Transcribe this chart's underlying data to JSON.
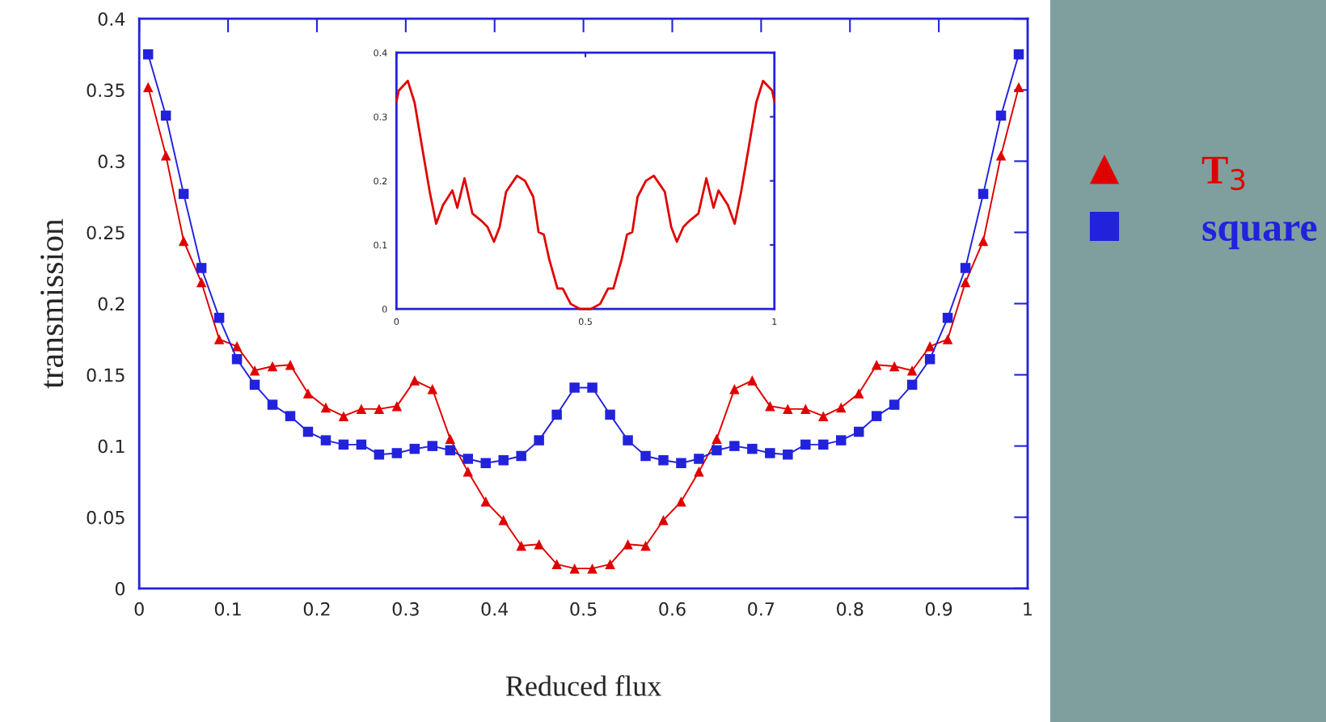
{
  "chart_data": [
    {
      "type": "line",
      "xlabel": "Reduced flux",
      "ylabel": "transmission",
      "x": [
        0.01,
        0.03,
        0.05,
        0.07,
        0.09,
        0.11,
        0.13,
        0.15,
        0.17,
        0.19,
        0.21,
        0.23,
        0.25,
        0.27,
        0.29,
        0.31,
        0.33,
        0.35,
        0.37,
        0.39,
        0.41,
        0.43,
        0.45,
        0.47,
        0.49,
        0.51,
        0.53,
        0.55,
        0.57,
        0.59,
        0.61,
        0.63,
        0.65,
        0.67,
        0.69,
        0.71,
        0.73,
        0.75,
        0.77,
        0.79,
        0.81,
        0.83,
        0.85,
        0.87,
        0.89,
        0.91,
        0.93,
        0.95,
        0.97,
        0.99
      ],
      "series": [
        {
          "name": "T$_{3}$",
          "color": "#e00000",
          "marker": "triangle",
          "values": [
            0.352,
            0.304,
            0.244,
            0.215,
            0.175,
            0.17,
            0.153,
            0.156,
            0.157,
            0.137,
            0.127,
            0.121,
            0.126,
            0.126,
            0.128,
            0.146,
            0.14,
            0.105,
            0.082,
            0.061,
            0.048,
            0.03,
            0.031,
            0.017,
            0.014,
            0.014,
            0.017,
            0.031,
            0.03,
            0.048,
            0.061,
            0.082,
            0.105,
            0.14,
            0.146,
            0.128,
            0.126,
            0.126,
            0.121,
            0.127,
            0.137,
            0.157,
            0.156,
            0.153,
            0.17,
            0.175,
            0.215,
            0.244,
            0.304,
            0.352
          ]
        },
        {
          "name": "square",
          "color": "#2222dd",
          "marker": "square",
          "values": [
            0.375,
            0.332,
            0.277,
            0.225,
            0.19,
            0.161,
            0.143,
            0.129,
            0.121,
            0.11,
            0.104,
            0.101,
            0.101,
            0.094,
            0.095,
            0.098,
            0.1,
            0.097,
            0.091,
            0.088,
            0.09,
            0.093,
            0.104,
            0.122,
            0.141,
            0.141,
            0.122,
            0.104,
            0.093,
            0.09,
            0.088,
            0.091,
            0.097,
            0.1,
            0.098,
            0.095,
            0.094,
            0.101,
            0.101,
            0.104,
            0.11,
            0.121,
            0.129,
            0.143,
            0.161,
            0.19,
            0.225,
            0.277,
            0.332,
            0.375
          ]
        }
      ],
      "xlim": [
        0,
        1
      ],
      "ylim": [
        0,
        0.4
      ],
      "xticks": [
        0,
        0.1,
        0.2,
        0.3,
        0.4,
        0.5,
        0.6,
        0.7,
        0.8,
        0.9,
        1
      ],
      "yticks": [
        0,
        0.05,
        0.1,
        0.15,
        0.2,
        0.25,
        0.3,
        0.35,
        0.4
      ],
      "grid": false,
      "legend": "right",
      "line_style": "solid"
    },
    {
      "type": "line",
      "x": [
        0,
        0.006,
        0.03,
        0.048,
        0.066,
        0.088,
        0.105,
        0.123,
        0.148,
        0.161,
        0.18,
        0.201,
        0.226,
        0.241,
        0.258,
        0.273,
        0.29,
        0.319,
        0.34,
        0.362,
        0.376,
        0.39,
        0.404,
        0.426,
        0.44,
        0.461,
        0.486,
        0.514,
        0.539,
        0.56,
        0.574,
        0.596,
        0.61,
        0.624,
        0.638,
        0.66,
        0.681,
        0.71,
        0.727,
        0.742,
        0.759,
        0.774,
        0.799,
        0.82,
        0.839,
        0.852,
        0.877,
        0.895,
        0.912,
        0.934,
        0.952,
        0.97,
        0.994,
        1
      ],
      "series": [
        {
          "color": "#e00000",
          "values": [
            0.324,
            0.341,
            0.356,
            0.322,
            0.259,
            0.183,
            0.133,
            0.162,
            0.185,
            0.158,
            0.204,
            0.149,
            0.137,
            0.128,
            0.105,
            0.128,
            0.183,
            0.208,
            0.2,
            0.175,
            0.12,
            0.116,
            0.078,
            0.032,
            0.032,
            0.008,
            0.0,
            0.0,
            0.008,
            0.032,
            0.032,
            0.078,
            0.116,
            0.12,
            0.175,
            0.2,
            0.208,
            0.183,
            0.128,
            0.105,
            0.128,
            0.137,
            0.149,
            0.204,
            0.158,
            0.185,
            0.162,
            0.133,
            0.183,
            0.259,
            0.322,
            0.356,
            0.341,
            0.324
          ]
        }
      ],
      "xlim": [
        0,
        1
      ],
      "ylim": [
        0,
        0.4
      ],
      "xticks": [
        0,
        0.5,
        1
      ],
      "yticks": [
        0,
        0.1,
        0.2,
        0.3,
        0.4
      ],
      "grid": false,
      "line_style": "solid"
    }
  ]
}
